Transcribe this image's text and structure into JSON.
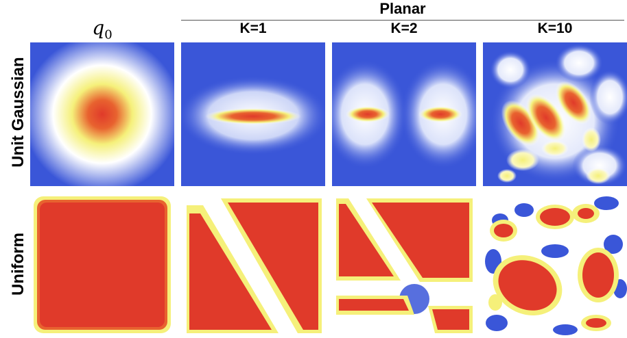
{
  "figure": {
    "group_header": "Planar",
    "q0_symbol": "q",
    "q0_subscript": "0",
    "column_headers": [
      "K=1",
      "K=2",
      "K=10"
    ],
    "row_labels": [
      "Unit Gaussian",
      "Uniform"
    ]
  },
  "colors": {
    "low": "#3a56d8",
    "mid": "#ffffff",
    "high_yellow": "#f5f07a",
    "peak_red": "#e03a2a"
  }
}
